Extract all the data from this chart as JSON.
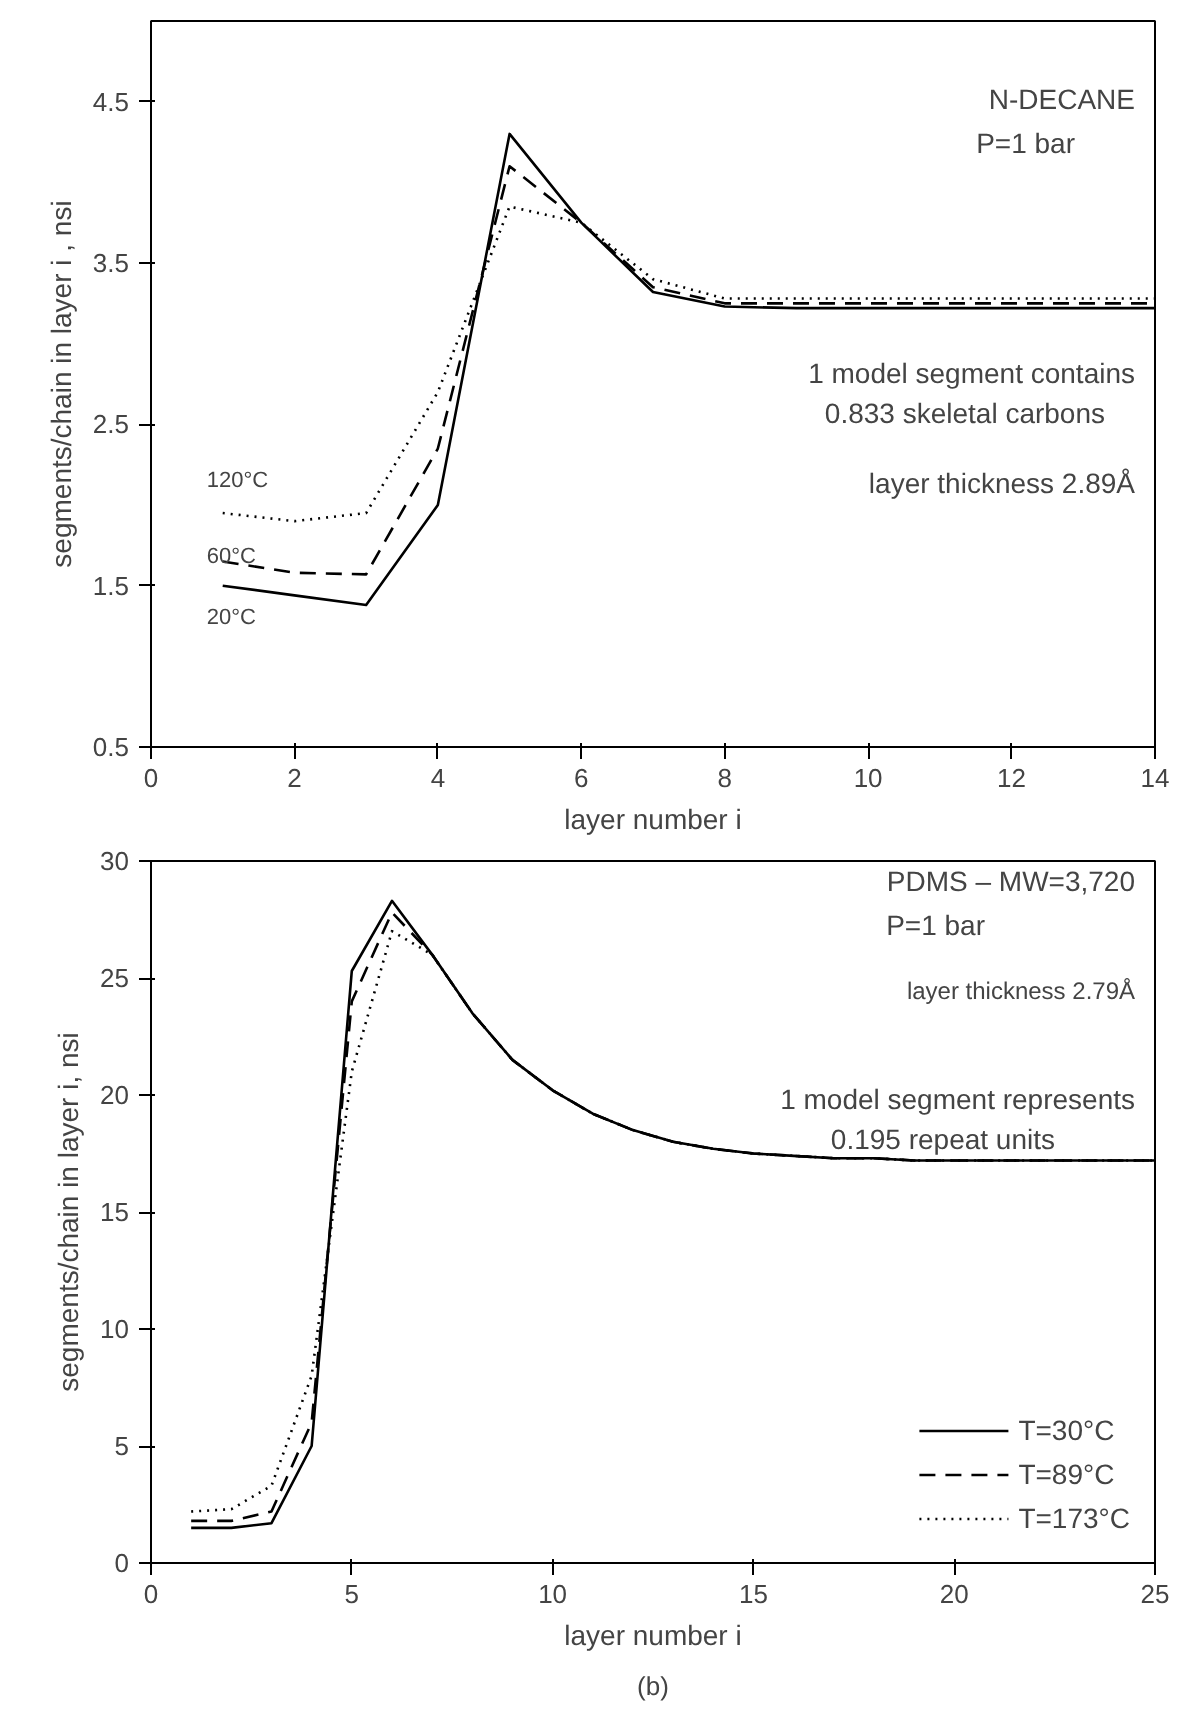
{
  "chart_data": [
    {
      "type": "line",
      "xlabel": "layer number i",
      "ylabel": "segments/chain in layer i , nsi",
      "x": [
        1,
        2,
        3,
        4,
        5,
        6,
        7,
        8,
        9,
        10,
        11,
        12,
        13,
        14
      ],
      "xlim": [
        0,
        14
      ],
      "xticks": [
        0,
        2,
        4,
        6,
        8,
        10,
        12,
        14
      ],
      "ylim": [
        0.5,
        5.0
      ],
      "yticks": [
        0.5,
        1.5,
        2.5,
        3.5,
        4.5
      ],
      "grid": false,
      "legend": false,
      "marker": "none",
      "series": [
        {
          "name": "20°C",
          "color": "#000000",
          "line_style": "solid",
          "values": [
            1.5,
            1.44,
            1.38,
            2.0,
            4.3,
            3.75,
            3.32,
            3.23,
            3.22,
            3.22,
            3.22,
            3.22,
            3.22,
            3.22
          ]
        },
        {
          "name": "60°C",
          "color": "#000000",
          "line_style": "dashed",
          "values": [
            1.65,
            1.58,
            1.57,
            2.35,
            4.1,
            3.75,
            3.35,
            3.25,
            3.25,
            3.25,
            3.25,
            3.25,
            3.25,
            3.25
          ]
        },
        {
          "name": "120°C",
          "color": "#000000",
          "line_style": "dotted",
          "values": [
            1.95,
            1.9,
            1.95,
            2.7,
            3.85,
            3.75,
            3.4,
            3.28,
            3.28,
            3.28,
            3.28,
            3.28,
            3.28,
            3.28
          ]
        }
      ],
      "annotations": [
        "N-DECANE",
        "P=1 bar",
        "1 model segment contains",
        "0.833 skeletal carbons",
        "layer thickness 2.89Å"
      ]
    },
    {
      "type": "line",
      "xlabel": "layer number i",
      "ylabel": "segments/chain in layer i, nsi",
      "x": [
        1,
        2,
        3,
        4,
        5,
        6,
        7,
        8,
        9,
        10,
        11,
        12,
        13,
        14,
        15,
        16,
        17,
        18,
        19,
        20,
        21,
        22,
        23,
        24,
        25
      ],
      "xlim": [
        0,
        25
      ],
      "xticks": [
        0,
        5,
        10,
        15,
        20,
        25
      ],
      "ylim": [
        0,
        30
      ],
      "yticks": [
        0,
        5,
        10,
        15,
        20,
        25,
        30
      ],
      "grid": false,
      "legend": "bottom right",
      "marker": "none",
      "series": [
        {
          "name": "T=30°C",
          "color": "#000000",
          "line_style": "solid",
          "values": [
            1.5,
            1.5,
            1.7,
            5.0,
            25.3,
            28.3,
            26.0,
            23.5,
            21.5,
            20.2,
            19.2,
            18.5,
            18.0,
            17.7,
            17.5,
            17.4,
            17.3,
            17.3,
            17.2,
            17.2,
            17.2,
            17.2,
            17.2,
            17.2,
            17.2
          ]
        },
        {
          "name": "T=89°C",
          "color": "#000000",
          "line_style": "dashed",
          "values": [
            1.8,
            1.8,
            2.2,
            6.0,
            24.0,
            27.8,
            26.0,
            23.5,
            21.5,
            20.2,
            19.2,
            18.5,
            18.0,
            17.7,
            17.5,
            17.4,
            17.3,
            17.3,
            17.2,
            17.2,
            17.2,
            17.2,
            17.2,
            17.2,
            17.2
          ]
        },
        {
          "name": "T=173°C",
          "color": "#000000",
          "line_style": "dotted",
          "values": [
            2.2,
            2.3,
            3.3,
            8.0,
            21.0,
            27.0,
            26.0,
            23.5,
            21.5,
            20.2,
            19.2,
            18.5,
            18.0,
            17.7,
            17.5,
            17.4,
            17.3,
            17.3,
            17.2,
            17.2,
            17.2,
            17.2,
            17.2,
            17.2,
            17.2
          ]
        }
      ],
      "annotations": [
        "PDMS – MW=3,720",
        "P=1 bar",
        "layer thickness 2.79Å",
        "1 model segment represents",
        "0.195 repeat units",
        "(b)"
      ]
    }
  ]
}
